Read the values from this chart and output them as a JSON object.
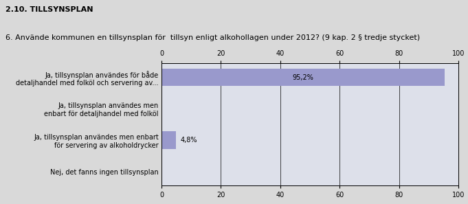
{
  "title_section": "2.10. TILLSYNSPLAN",
  "question": "6. Använde kommunen en tillsynsplan för  tillsyn enligt alkohollagen under 2012? (9 kap. 2 § tredje stycket)",
  "categories": [
    "Ja, tillsynsplan användes för både\ndetaljhandel med folköl och servering av...",
    "Ja, tillsynsplan användes men\nenbart för detaljhandel med folköl",
    "Ja, tillsynsplan användes men enbart\nför servering av alkoholdrycker",
    "Nej, det fanns ingen tillsynsplan"
  ],
  "values": [
    95.2,
    0.0,
    4.8,
    0.0
  ],
  "labels": [
    "95,2%",
    "",
    "4,8%",
    ""
  ],
  "bar_color": "#9999cc",
  "bg_color": "#d9d9d9",
  "plot_bg_color": "#dde0ea",
  "xlim": [
    0,
    100
  ],
  "xticks": [
    0,
    20,
    40,
    60,
    80,
    100
  ],
  "title_fontsize": 8,
  "question_fontsize": 8,
  "tick_fontsize": 7,
  "label_fontsize": 7,
  "bar_height": 0.55
}
